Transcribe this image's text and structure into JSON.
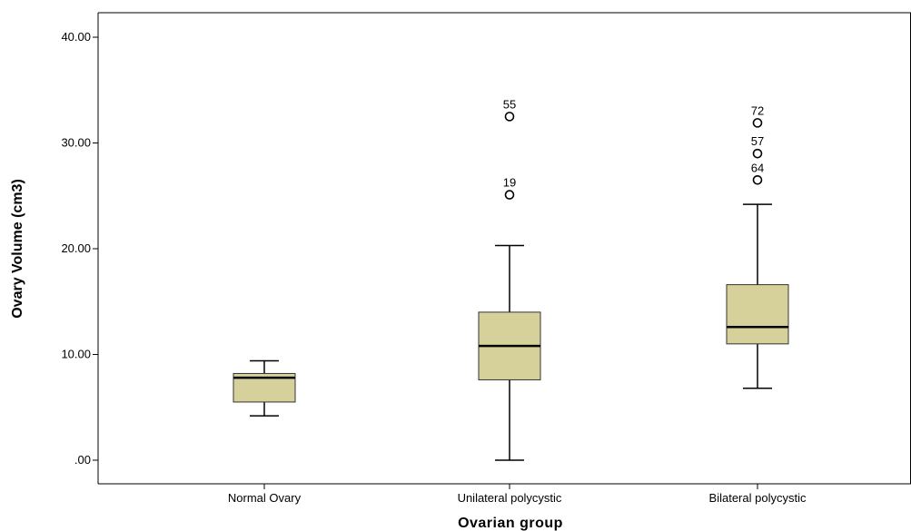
{
  "chart_data": {
    "type": "box",
    "xlabel": "Ovarian group",
    "ylabel": "Ovary Volume (cm3)",
    "ylim": [
      -2.5,
      42.5
    ],
    "yticks": [
      {
        "value": 0,
        "label": ".00"
      },
      {
        "value": 10,
        "label": "10.00"
      },
      {
        "value": 20,
        "label": "20.00"
      },
      {
        "value": 30,
        "label": "30.00"
      },
      {
        "value": 40,
        "label": "40.00"
      }
    ],
    "grid": false,
    "box_color": "#d6d09b",
    "categories": [
      "Normal Ovary",
      "Unilateral polycystic",
      "Bilateral polycystic"
    ],
    "boxes": [
      {
        "category": "Normal Ovary",
        "whisker_low": 4.2,
        "q1": 5.5,
        "median": 7.8,
        "q3": 8.2,
        "whisker_high": 9.4,
        "outliers": []
      },
      {
        "category": "Unilateral polycystic",
        "whisker_low": 0.0,
        "q1": 7.6,
        "median": 10.8,
        "q3": 14.0,
        "whisker_high": 20.3,
        "outliers": [
          {
            "value": 25.1,
            "label": "19"
          },
          {
            "value": 32.5,
            "label": "55"
          }
        ]
      },
      {
        "category": "Bilateral polycystic",
        "whisker_low": 6.8,
        "q1": 11.0,
        "median": 12.6,
        "q3": 16.6,
        "whisker_high": 24.2,
        "outliers": [
          {
            "value": 26.5,
            "label": "64"
          },
          {
            "value": 29.0,
            "label": "57"
          },
          {
            "value": 31.9,
            "label": "72"
          }
        ]
      }
    ]
  }
}
